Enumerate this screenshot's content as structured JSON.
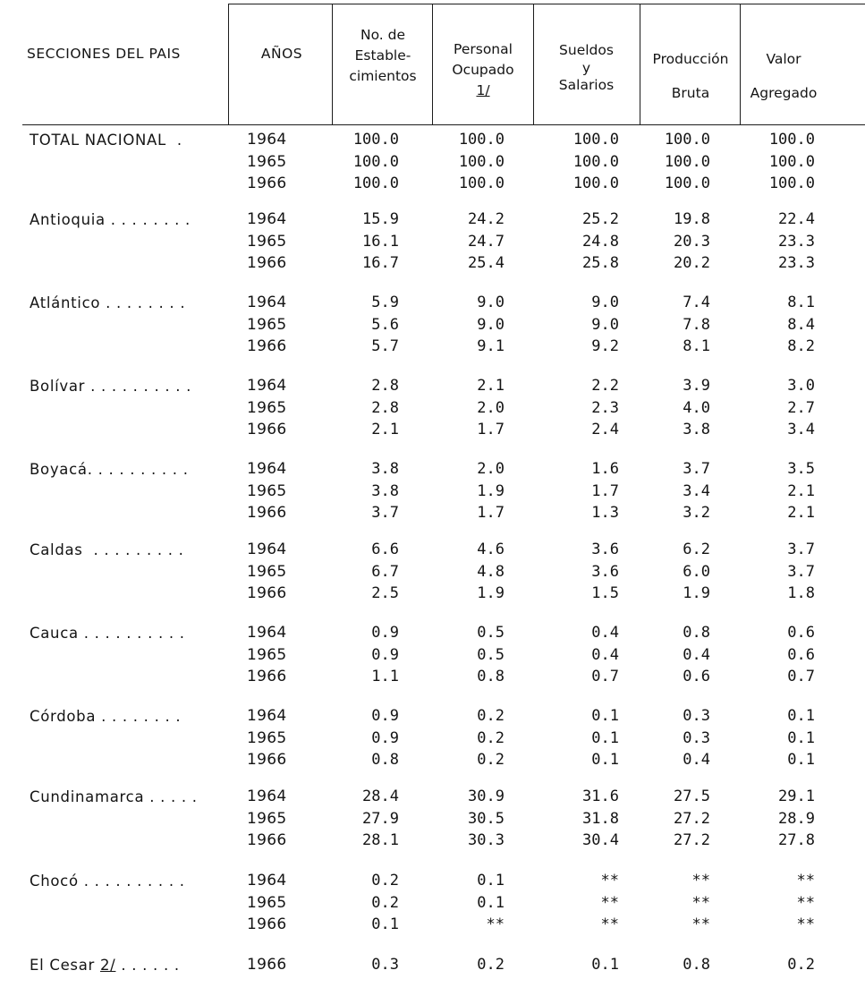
{
  "headers": {
    "secciones": "SECCIONES DEL PAIS",
    "anos": "AÑOS",
    "establecimientos": [
      "No. de",
      "Estable-",
      "cimientos"
    ],
    "personal": [
      "Personal",
      "Ocupado",
      "1/"
    ],
    "sueldos": [
      "Sueldos",
      "y",
      "Salarios"
    ],
    "produccion": [
      "Producción",
      "Bruta"
    ],
    "valor": [
      "Valor",
      "Agregado"
    ]
  },
  "rows": [
    {
      "section": "TOTAL NACIONAL  .",
      "footnote": "",
      "leaders": "",
      "years": [
        {
          "year": "1964",
          "values": [
            "100.0",
            "100.0",
            "100.0",
            "100.0",
            "100.0"
          ]
        },
        {
          "year": "1965",
          "values": [
            "100.0",
            "100.0",
            "100.0",
            "100.0",
            "100.0"
          ]
        },
        {
          "year": "1966",
          "values": [
            "100.0",
            "100.0",
            "100.0",
            "100.0",
            "100.0"
          ]
        }
      ]
    },
    {
      "section": "Antioquia",
      "footnote": "",
      "leaders": " . . . . . . . .",
      "years": [
        {
          "year": "1964",
          "values": [
            "15.9",
            "24.2",
            "25.2",
            "19.8",
            "22.4"
          ]
        },
        {
          "year": "1965",
          "values": [
            "16.1",
            "24.7",
            "24.8",
            "20.3",
            "23.3"
          ]
        },
        {
          "year": "1966",
          "values": [
            "16.7",
            "25.4",
            "25.8",
            "20.2",
            "23.3"
          ]
        }
      ]
    },
    {
      "section": "Atlántico",
      "footnote": "",
      "leaders": " . . . . . . . .",
      "years": [
        {
          "year": "1964",
          "values": [
            "5.9",
            "9.0",
            "9.0",
            "7.4",
            "8.1"
          ]
        },
        {
          "year": "1965",
          "values": [
            "5.6",
            "9.0",
            "9.0",
            "7.8",
            "8.4"
          ]
        },
        {
          "year": "1966",
          "values": [
            "5.7",
            "9.1",
            "9.2",
            "8.1",
            "8.2"
          ]
        }
      ]
    },
    {
      "section": "Bolívar",
      "footnote": "",
      "leaders": " . . . . . . . . . .",
      "years": [
        {
          "year": "1964",
          "values": [
            "2.8",
            "2.1",
            "2.2",
            "3.9",
            "3.0"
          ]
        },
        {
          "year": "1965",
          "values": [
            "2.8",
            "2.0",
            "2.3",
            "4.0",
            "2.7"
          ]
        },
        {
          "year": "1966",
          "values": [
            "2.1",
            "1.7",
            "2.4",
            "3.8",
            "3.4"
          ]
        }
      ]
    },
    {
      "section": "Boyacá",
      "footnote": "",
      "leaders": ". . . . . . . . . .",
      "years": [
        {
          "year": "1964",
          "values": [
            "3.8",
            "2.0",
            "1.6",
            "3.7",
            "3.5"
          ]
        },
        {
          "year": "1965",
          "values": [
            "3.8",
            "1.9",
            "1.7",
            "3.4",
            "2.1"
          ]
        },
        {
          "year": "1966",
          "values": [
            "3.7",
            "1.7",
            "1.3",
            "3.2",
            "2.1"
          ]
        }
      ]
    },
    {
      "section": "Caldas",
      "footnote": "",
      "leaders": "  . . . . . . . . .",
      "years": [
        {
          "year": "1964",
          "values": [
            "6.6",
            "4.6",
            "3.6",
            "6.2",
            "3.7"
          ]
        },
        {
          "year": "1965",
          "values": [
            "6.7",
            "4.8",
            "3.6",
            "6.0",
            "3.7"
          ]
        },
        {
          "year": "1966",
          "values": [
            "2.5",
            "1.9",
            "1.5",
            "1.9",
            "1.8"
          ]
        }
      ]
    },
    {
      "section": "Cauca",
      "footnote": "",
      "leaders": " . . . . . . . . . .",
      "years": [
        {
          "year": "1964",
          "values": [
            "0.9",
            "0.5",
            "0.4",
            "0.8",
            "0.6"
          ]
        },
        {
          "year": "1965",
          "values": [
            "0.9",
            "0.5",
            "0.4",
            "0.4",
            "0.6"
          ]
        },
        {
          "year": "1966",
          "values": [
            "1.1",
            "0.8",
            "0.7",
            "0.6",
            "0.7"
          ]
        }
      ]
    },
    {
      "section": "Córdoba",
      "footnote": "",
      "leaders": " . . . . . . . .",
      "years": [
        {
          "year": "1964",
          "values": [
            "0.9",
            "0.2",
            "0.1",
            "0.3",
            "0.1"
          ]
        },
        {
          "year": "1965",
          "values": [
            "0.9",
            "0.2",
            "0.1",
            "0.3",
            "0.1"
          ]
        },
        {
          "year": "1966",
          "values": [
            "0.8",
            "0.2",
            "0.1",
            "0.4",
            "0.1"
          ]
        }
      ]
    },
    {
      "section": "Cundinamarca",
      "footnote": "",
      "leaders": " . . . . .",
      "years": [
        {
          "year": "1964",
          "values": [
            "28.4",
            "30.9",
            "31.6",
            "27.5",
            "29.1"
          ]
        },
        {
          "year": "1965",
          "values": [
            "27.9",
            "30.5",
            "31.8",
            "27.2",
            "28.9"
          ]
        },
        {
          "year": "1966",
          "values": [
            "28.1",
            "30.3",
            "30.4",
            "27.2",
            "27.8"
          ]
        }
      ]
    },
    {
      "section": "Chocó",
      "footnote": "",
      "leaders": " . . . . . . . . . .",
      "years": [
        {
          "year": "1964",
          "values": [
            "0.2",
            "0.1",
            "**",
            "**",
            "**"
          ]
        },
        {
          "year": "1965",
          "values": [
            "0.2",
            "0.1",
            "**",
            "**",
            "**"
          ]
        },
        {
          "year": "1966",
          "values": [
            "0.1",
            "**",
            "**",
            "**",
            "**"
          ]
        }
      ]
    },
    {
      "section": "El Cesar ",
      "footnote": "2/",
      "leaders": " . . . . . .",
      "years": [
        {
          "year": "1966",
          "values": [
            "0.3",
            "0.2",
            "0.1",
            "0.8",
            "0.2"
          ]
        }
      ]
    }
  ]
}
